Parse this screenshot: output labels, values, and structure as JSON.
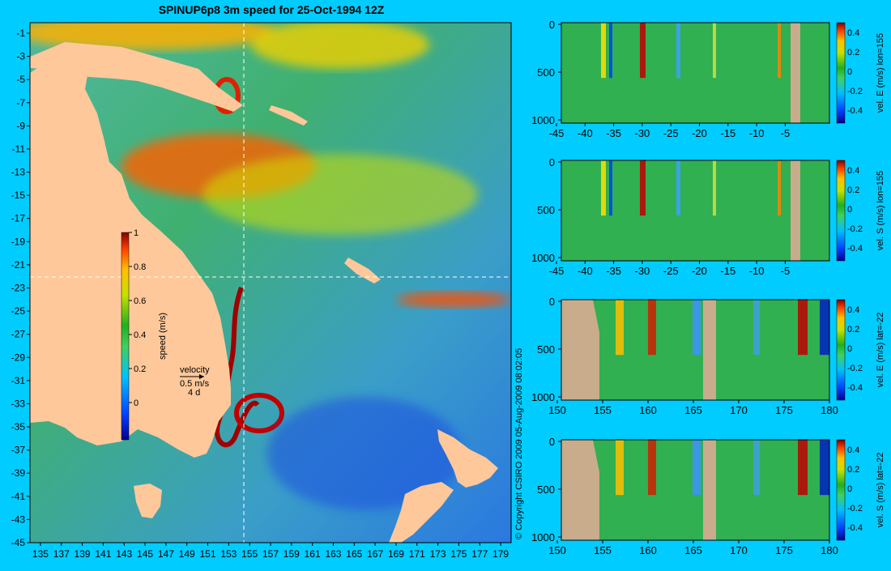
{
  "title": "SPINUP6p8 3m speed for 25-Oct-1994 12Z",
  "copyright": "© Copyright CSIRO 2009   05-Aug-2009 08:02:05",
  "colors": {
    "background": "#00ccff",
    "land": "#fec89a",
    "section_land": "#c8ac8c",
    "reference_line": "#ffffff"
  },
  "map": {
    "lon_ticks": [
      "135",
      "137",
      "139",
      "141",
      "143",
      "145",
      "147",
      "149",
      "151",
      "153",
      "155",
      "157",
      "159",
      "161",
      "163",
      "165",
      "167",
      "169",
      "171",
      "173",
      "175",
      "177",
      "179"
    ],
    "lat_ticks": [
      "-1",
      "-3",
      "-5",
      "-7",
      "-9",
      "-11",
      "-13",
      "-15",
      "-17",
      "-19",
      "-21",
      "-23",
      "-25",
      "-27",
      "-29",
      "-31",
      "-33",
      "-35",
      "-37",
      "-39",
      "-41",
      "-43",
      "-45"
    ],
    "lon_range": [
      135,
      180
    ],
    "lat_range": [
      -45,
      0
    ],
    "reference_lines": {
      "lon": 155,
      "lat": -22
    }
  },
  "colorbar": {
    "label": "speed (m/s)",
    "ticks": [
      "1",
      "0.8",
      "0.6",
      "0.4",
      "0.2",
      "0"
    ],
    "range": [
      -0.2,
      1
    ]
  },
  "velocity_key": {
    "title": "velocity",
    "speed": "0.5 m/s",
    "duration": "4 d"
  },
  "sections": [
    {
      "label": "vel. E (m/s) lon=155",
      "x_ticks": [
        "-45",
        "-40",
        "-35",
        "-30",
        "-25",
        "-20",
        "-15",
        "-10",
        "-5"
      ],
      "y_ticks": [
        "0",
        "500",
        "1000"
      ],
      "cbar_ticks": [
        "0.4",
        "0.2",
        "0",
        "-0.2",
        "-0.4"
      ]
    },
    {
      "label": "vel. S (m/s) lon=155",
      "x_ticks": [
        "-45",
        "-40",
        "-35",
        "-30",
        "-25",
        "-20",
        "-15",
        "-10",
        "-5"
      ],
      "y_ticks": [
        "0",
        "500",
        "1000"
      ],
      "cbar_ticks": [
        "0.4",
        "0.2",
        "0",
        "-0.2",
        "-0.4"
      ]
    },
    {
      "label": "vel. E (m/s) lat=-22",
      "x_ticks": [
        "150",
        "155",
        "160",
        "165",
        "170",
        "175",
        "180"
      ],
      "y_ticks": [
        "0",
        "500",
        "1000"
      ],
      "cbar_ticks": [
        "0.4",
        "0.2",
        "0",
        "-0.2",
        "-0.4"
      ]
    },
    {
      "label": "vel. S (m/s) lat=-22",
      "x_ticks": [
        "150",
        "155",
        "160",
        "165",
        "170",
        "175",
        "180"
      ],
      "y_ticks": [
        "0",
        "500",
        "1000"
      ],
      "cbar_ticks": [
        "0.4",
        "0.2",
        "0",
        "-0.2",
        "-0.4"
      ]
    }
  ]
}
